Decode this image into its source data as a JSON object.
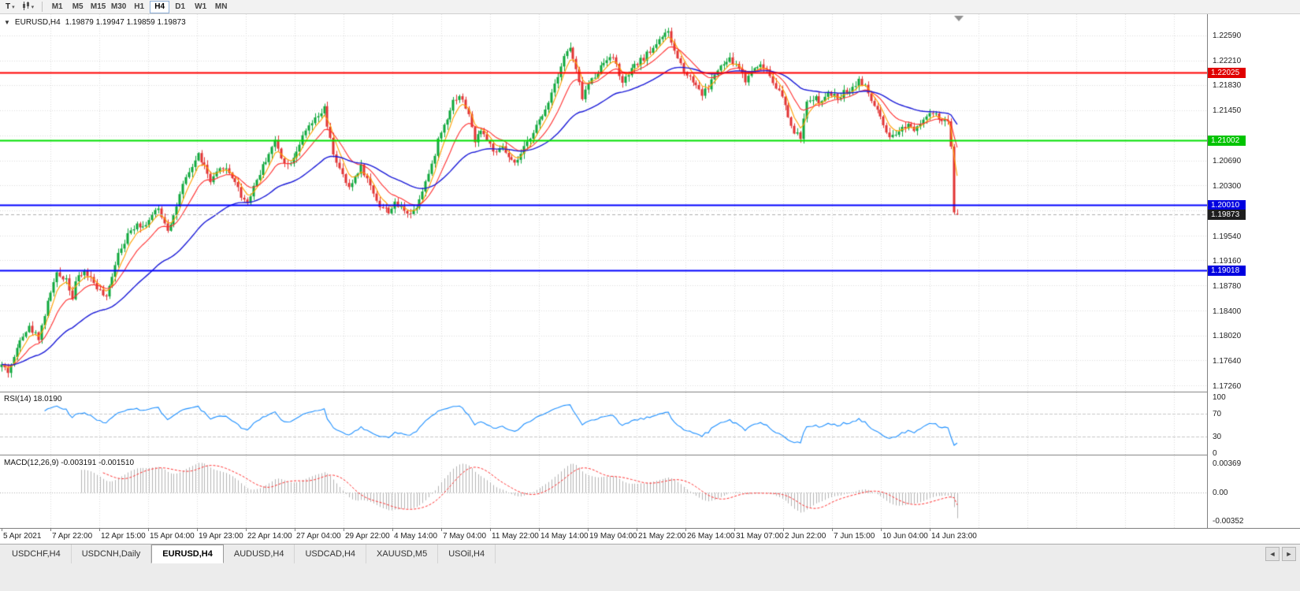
{
  "toolbar": {
    "tool_label": "T",
    "caret_icon": "▾",
    "timeframes": [
      "M1",
      "M5",
      "M15",
      "M30",
      "H1",
      "H4",
      "D1",
      "W1",
      "MN"
    ],
    "active_timeframe": "H4"
  },
  "main_chart": {
    "one_click_icon": "▼",
    "symbol": "EURUSD,H4",
    "ohlc": "1.19879 1.19947 1.19859 1.19873"
  },
  "chart_data": {
    "type": "candlestick",
    "symbol": "EURUSD",
    "timeframe": "H4",
    "bars": 312,
    "last_bar": {
      "open": 1.19879,
      "high": 1.19947,
      "low": 1.19859,
      "close": 1.19873
    },
    "price_range": {
      "top": 1.22913,
      "bottom": 1.17175
    },
    "grid_step": 0.0038,
    "price_axis_labels": [
      "1.22590",
      "1.22210",
      "1.21830",
      "1.21450",
      "1.20690",
      "1.20300",
      "1.19540",
      "1.19160",
      "1.18780",
      "1.18400",
      "1.18020",
      "1.17640",
      "1.17260"
    ],
    "price_tags": [
      {
        "value": "1.22025",
        "price": 1.22025,
        "color": "#e00000",
        "line_color": "#ff0000",
        "type": "resistance-line"
      },
      {
        "value": "1.21002",
        "price": 1.21002,
        "color": "#00c400",
        "line_color": "#00e000",
        "type": "support-line"
      },
      {
        "value": "1.20010",
        "price": 1.2001,
        "color": "#0000e0",
        "line_color": "#0000ff",
        "type": "support-line"
      },
      {
        "value": "1.19873",
        "price": 1.19873,
        "color": "#1e1e1e",
        "line_color": "#b0b0b0",
        "type": "current-price"
      },
      {
        "value": "1.19018",
        "price": 1.19018,
        "color": "#0000e0",
        "line_color": "#0000ff",
        "type": "support-line"
      }
    ],
    "time_labels": [
      "5 Apr 2021",
      "7 Apr 22:00",
      "12 Apr 15:00",
      "15 Apr 04:00",
      "19 Apr 23:00",
      "22 Apr 14:00",
      "27 Apr 04:00",
      "29 Apr 22:00",
      "4 May 14:00",
      "7 May 04:00",
      "11 May 22:00",
      "14 May 14:00",
      "19 May 04:00",
      "21 May 22:00",
      "26 May 14:00",
      "31 May 07:00",
      "2 Jun 22:00",
      "7 Jun 15:00",
      "10 Jun 04:00",
      "14 Jun 23:00"
    ],
    "candle_colors": {
      "up": "#0fa83c",
      "down": "#e23434"
    },
    "moving_averages": [
      {
        "name": "fast-ma",
        "type": "ema",
        "period": 5,
        "color": "#ffa000"
      },
      {
        "name": "medium-ma",
        "type": "ema",
        "period": 13,
        "color": "#ff3030"
      },
      {
        "name": "slow-ma",
        "type": "ema",
        "period": 40,
        "color": "#1b1bd8"
      }
    ],
    "close_anchors": [
      [
        0,
        1.1758
      ],
      [
        2,
        1.1748
      ],
      [
        4,
        1.1768
      ],
      [
        6,
        1.18
      ],
      [
        9,
        1.1815
      ],
      [
        12,
        1.18
      ],
      [
        14,
        1.1835
      ],
      [
        16,
        1.187
      ],
      [
        18,
        1.1895
      ],
      [
        21,
        1.189
      ],
      [
        23,
        1.186
      ],
      [
        24,
        1.1885
      ],
      [
        27,
        1.19
      ],
      [
        29,
        1.189
      ],
      [
        32,
        1.187
      ],
      [
        34,
        1.1858
      ],
      [
        36,
        1.1895
      ],
      [
        38,
        1.193
      ],
      [
        41,
        1.1955
      ],
      [
        44,
        1.1975
      ],
      [
        46,
        1.1968
      ],
      [
        49,
        1.1985
      ],
      [
        51,
        1.1995
      ],
      [
        54,
        1.1965
      ],
      [
        56,
        1.1985
      ],
      [
        59,
        1.203
      ],
      [
        62,
        1.206
      ],
      [
        64,
        1.2078
      ],
      [
        66,
        1.206
      ],
      [
        68,
        1.2035
      ],
      [
        70,
        1.2048
      ],
      [
        72,
        1.206
      ],
      [
        74,
        1.205
      ],
      [
        76,
        1.2038
      ],
      [
        78,
        1.2015
      ],
      [
        80,
        1.2005
      ],
      [
        82,
        1.203
      ],
      [
        85,
        1.206
      ],
      [
        87,
        1.208
      ],
      [
        89,
        1.2098
      ],
      [
        91,
        1.2075
      ],
      [
        93,
        1.2062
      ],
      [
        95,
        1.2075
      ],
      [
        97,
        1.2095
      ],
      [
        100,
        1.212
      ],
      [
        103,
        1.2135
      ],
      [
        105,
        1.2148
      ],
      [
        106,
        1.212
      ],
      [
        108,
        1.208
      ],
      [
        110,
        1.2055
      ],
      [
        113,
        1.2025
      ],
      [
        115,
        1.2045
      ],
      [
        117,
        1.206
      ],
      [
        119,
        1.204
      ],
      [
        121,
        1.202
      ],
      [
        123,
        1.2
      ],
      [
        126,
        1.1992
      ],
      [
        128,
        1.2002
      ],
      [
        131,
        1.1995
      ],
      [
        133,
        1.1988
      ],
      [
        135,
        1.2
      ],
      [
        137,
        1.2025
      ],
      [
        140,
        1.206
      ],
      [
        142,
        1.21
      ],
      [
        145,
        1.2135
      ],
      [
        147,
        1.216
      ],
      [
        149,
        1.2168
      ],
      [
        151,
        1.215
      ],
      [
        153,
        1.2122
      ],
      [
        154,
        1.2095
      ],
      [
        156,
        1.2118
      ],
      [
        158,
        1.21
      ],
      [
        161,
        1.2078
      ],
      [
        163,
        1.209
      ],
      [
        165,
        1.2072
      ],
      [
        167,
        1.2062
      ],
      [
        169,
        1.2078
      ],
      [
        171,
        1.2095
      ],
      [
        173,
        1.2115
      ],
      [
        176,
        1.2135
      ],
      [
        178,
        1.216
      ],
      [
        181,
        1.22
      ],
      [
        183,
        1.2228
      ],
      [
        185,
        1.224
      ],
      [
        187,
        1.2205
      ],
      [
        189,
        1.2165
      ],
      [
        191,
        1.2185
      ],
      [
        194,
        1.2205
      ],
      [
        196,
        1.2218
      ],
      [
        198,
        1.223
      ],
      [
        200,
        1.2215
      ],
      [
        202,
        1.2185
      ],
      [
        204,
        1.22
      ],
      [
        206,
        1.2212
      ],
      [
        209,
        1.2225
      ],
      [
        212,
        1.224
      ],
      [
        214,
        1.2255
      ],
      [
        217,
        1.2262
      ],
      [
        219,
        1.2235
      ],
      [
        221,
        1.2215
      ],
      [
        223,
        1.22
      ],
      [
        226,
        1.2185
      ],
      [
        228,
        1.217
      ],
      [
        230,
        1.218
      ],
      [
        232,
        1.22
      ],
      [
        235,
        1.2215
      ],
      [
        237,
        1.2222
      ],
      [
        240,
        1.221
      ],
      [
        242,
        1.219
      ],
      [
        244,
        1.2205
      ],
      [
        246,
        1.2215
      ],
      [
        249,
        1.2208
      ],
      [
        251,
        1.219
      ],
      [
        254,
        1.2165
      ],
      [
        256,
        1.2135
      ],
      [
        258,
        1.211
      ],
      [
        260,
        1.2105
      ],
      [
        262,
        1.2155
      ],
      [
        264,
        1.2165
      ],
      [
        267,
        1.2158
      ],
      [
        269,
        1.217
      ],
      [
        272,
        1.2165
      ],
      [
        274,
        1.2172
      ],
      [
        277,
        1.218
      ],
      [
        279,
        1.2192
      ],
      [
        281,
        1.218
      ],
      [
        283,
        1.216
      ],
      [
        285,
        1.2145
      ],
      [
        287,
        1.212
      ],
      [
        289,
        1.21
      ],
      [
        291,
        1.2108
      ],
      [
        293,
        1.2118
      ],
      [
        295,
        1.2125
      ],
      [
        297,
        1.2118
      ],
      [
        299,
        1.2128
      ],
      [
        301,
        1.2135
      ],
      [
        303,
        1.214
      ],
      [
        305,
        1.2132
      ],
      [
        307,
        1.2128
      ],
      [
        308,
        1.2125
      ],
      [
        309,
        1.209
      ],
      [
        310,
        1.199
      ],
      [
        311,
        1.19873
      ]
    ],
    "rsi": {
      "label": "RSI(14) 18.0190",
      "period": 14,
      "value": 18.019,
      "axis_labels": [
        "100",
        "70",
        "30",
        "0"
      ],
      "axis_values": [
        100,
        70,
        30,
        0
      ],
      "levels": [
        70,
        30
      ],
      "color": "#1e90ff"
    },
    "macd": {
      "label": "MACD(12,26,9) -0.003191 -0.001510",
      "fast": 12,
      "slow": 26,
      "signal": 9,
      "values": [
        -0.003191,
        -0.00151
      ],
      "axis_labels": [
        "0.00369",
        "0.00",
        "-0.00352"
      ],
      "axis_values": [
        0.00369,
        0,
        -0.00352
      ],
      "histogram_color": "#b4b4b4",
      "signal_color": "#ff3232"
    }
  },
  "tabs": {
    "items": [
      {
        "label": "USDCHF,H4",
        "active": false
      },
      {
        "label": "USDCNH,Daily",
        "active": false
      },
      {
        "label": "EURUSD,H4",
        "active": true
      },
      {
        "label": "AUDUSD,H4",
        "active": false
      },
      {
        "label": "USDCAD,H4",
        "active": false
      },
      {
        "label": "XAUUSD,M5",
        "active": false
      },
      {
        "label": "USOil,H4",
        "active": false
      }
    ],
    "scroll_left": "◄",
    "scroll_right": "►"
  }
}
